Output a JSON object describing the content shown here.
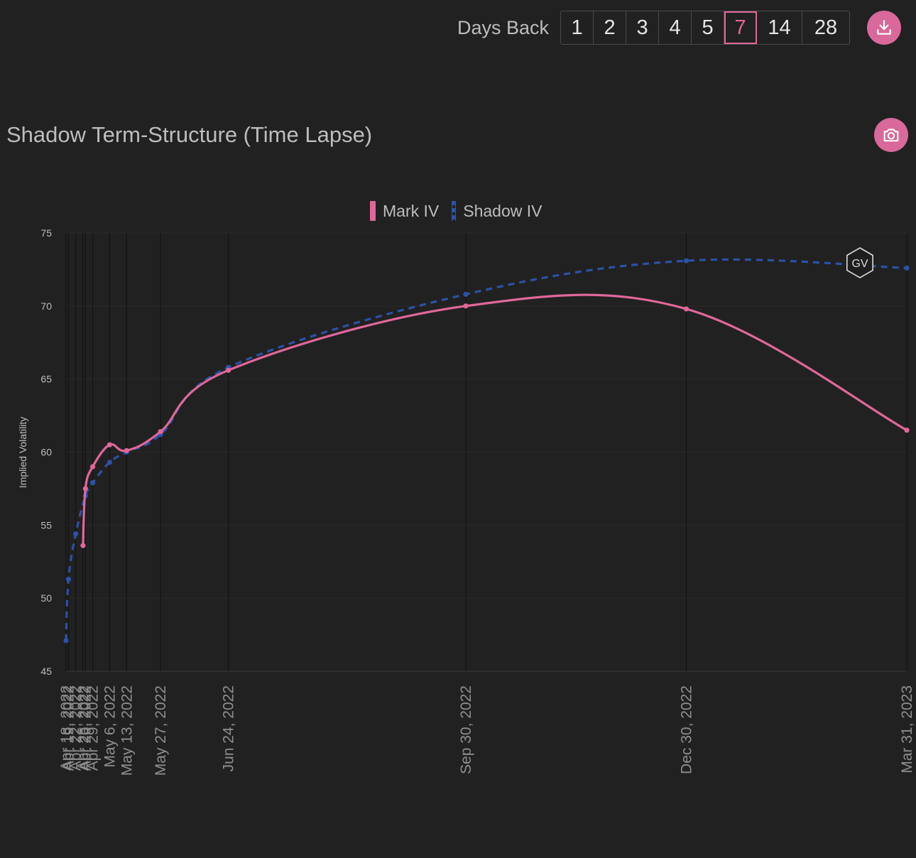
{
  "toolbar": {
    "days_back_label": "Days Back",
    "options": [
      "1",
      "2",
      "3",
      "4",
      "5",
      "7",
      "14",
      "28"
    ],
    "selected": "7",
    "download_icon": "download-icon"
  },
  "header": {
    "title": "Shadow Term-Structure (Time Lapse)",
    "screenshot_icon": "camera-icon"
  },
  "watermark": "GV",
  "colors": {
    "accent": "#e0679a",
    "mark_iv": "#e0679a",
    "shadow_iv": "#2c52a8",
    "background": "#212121"
  },
  "chart_data": {
    "type": "line",
    "title": "",
    "ylabel": "Implied Volatility",
    "xlabel": "",
    "ylim": [
      45,
      75
    ],
    "yticks": [
      "45",
      "50",
      "55",
      "60",
      "65",
      "70",
      "75"
    ],
    "legend_position": "top-center",
    "grid": true,
    "x_ticks": [
      {
        "date": "2022-04-18",
        "label": "Apr 18, 2022"
      },
      {
        "date": "2022-04-19",
        "label": "Apr 19, 2022"
      },
      {
        "date": "2022-04-22",
        "label": "Apr 22, 2022"
      },
      {
        "date": "2022-04-25",
        "label": "Apr 25, 2022"
      },
      {
        "date": "2022-04-26",
        "label": "Apr 26, 2022"
      },
      {
        "date": "2022-04-29",
        "label": "Apr 29, 2022"
      },
      {
        "date": "2022-05-06",
        "label": "May 6, 2022"
      },
      {
        "date": "2022-05-13",
        "label": "May 13, 2022"
      },
      {
        "date": "2022-05-27",
        "label": "May 27, 2022"
      },
      {
        "date": "2022-06-24",
        "label": "Jun 24, 2022"
      },
      {
        "date": "2022-09-30",
        "label": "Sep 30, 2022"
      },
      {
        "date": "2022-12-30",
        "label": "Dec 30, 2022"
      },
      {
        "date": "2023-03-31",
        "label": "Mar 31, 2023"
      }
    ],
    "series": [
      {
        "name": "Mark IV",
        "style": "solid",
        "points": [
          {
            "x": "2022-04-25",
            "y": 53.6
          },
          {
            "x": "2022-04-26",
            "y": 57.5
          },
          {
            "x": "2022-04-29",
            "y": 59.0
          },
          {
            "x": "2022-05-06",
            "y": 60.5
          },
          {
            "x": "2022-05-13",
            "y": 60.1
          },
          {
            "x": "2022-05-27",
            "y": 61.4
          },
          {
            "x": "2022-06-24",
            "y": 65.6
          },
          {
            "x": "2022-09-30",
            "y": 70.0
          },
          {
            "x": "2022-12-30",
            "y": 69.8
          },
          {
            "x": "2023-03-31",
            "y": 61.5
          }
        ]
      },
      {
        "name": "Shadow IV",
        "style": "dashed",
        "points": [
          {
            "x": "2022-04-18",
            "y": 47.1
          },
          {
            "x": "2022-04-19",
            "y": 51.3
          },
          {
            "x": "2022-04-22",
            "y": 54.4
          },
          {
            "x": "2022-04-26",
            "y": 57.0
          },
          {
            "x": "2022-04-29",
            "y": 57.9
          },
          {
            "x": "2022-05-06",
            "y": 59.3
          },
          {
            "x": "2022-05-13",
            "y": 60.0
          },
          {
            "x": "2022-05-27",
            "y": 61.2
          },
          {
            "x": "2022-06-24",
            "y": 65.8
          },
          {
            "x": "2022-09-30",
            "y": 70.8
          },
          {
            "x": "2022-12-30",
            "y": 73.1
          },
          {
            "x": "2023-03-31",
            "y": 72.6
          }
        ]
      }
    ]
  }
}
